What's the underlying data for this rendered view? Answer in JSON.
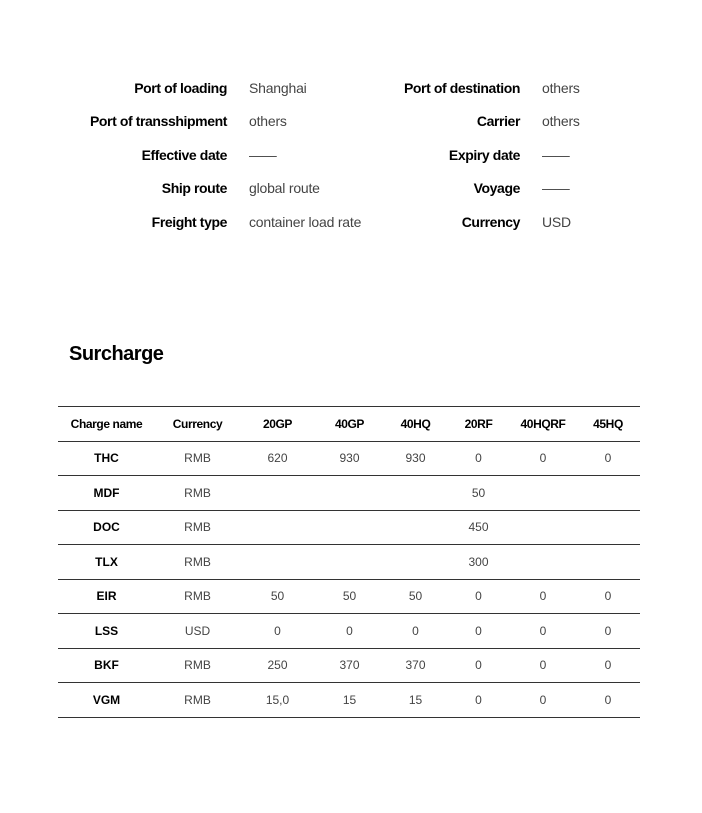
{
  "info": {
    "left": [
      {
        "label": "Port of loading",
        "value": "Shanghai"
      },
      {
        "label": "Port of transshipment",
        "value": "others"
      },
      {
        "label": "Effective date",
        "value": "——"
      },
      {
        "label": "Ship route",
        "value": "global route"
      },
      {
        "label": "Freight type",
        "value": "container load rate"
      }
    ],
    "right": [
      {
        "label": "Port of destination",
        "value": "others"
      },
      {
        "label": "Carrier",
        "value": "others"
      },
      {
        "label": "Expiry date",
        "value": "——"
      },
      {
        "label": "Voyage",
        "value": "——"
      },
      {
        "label": "Currency",
        "value": "USD"
      }
    ]
  },
  "surcharge": {
    "title": "Surcharge",
    "headers": [
      "Charge name",
      "Currency",
      "20GP",
      "40GP",
      "40HQ",
      "20RF",
      "40HQRF",
      "45HQ"
    ],
    "rows": [
      [
        "THC",
        "RMB",
        "620",
        "930",
        "930",
        "0",
        "0",
        "0"
      ],
      [
        "MDF",
        "RMB",
        "",
        "",
        "",
        "50",
        "",
        ""
      ],
      [
        "DOC",
        "RMB",
        "",
        "",
        "",
        "450",
        "",
        ""
      ],
      [
        "TLX",
        "RMB",
        "",
        "",
        "",
        "300",
        "",
        ""
      ],
      [
        "EIR",
        "RMB",
        "50",
        "50",
        "50",
        "0",
        "0",
        "0"
      ],
      [
        "LSS",
        "USD",
        "0",
        "0",
        "0",
        "0",
        "0",
        "0"
      ],
      [
        "BKF",
        "RMB",
        "250",
        "370",
        "370",
        "0",
        "0",
        "0"
      ],
      [
        "VGM",
        "RMB",
        "15,0",
        "15",
        "15",
        "0",
        "0",
        "0"
      ]
    ]
  }
}
